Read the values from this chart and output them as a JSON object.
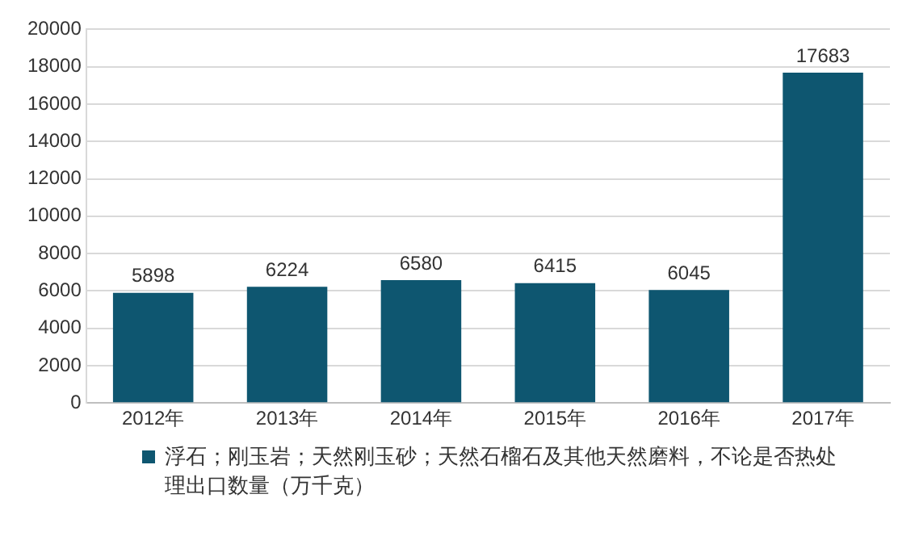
{
  "chart_data": {
    "type": "bar",
    "categories": [
      "2012年",
      "2013年",
      "2014年",
      "2015年",
      "2016年",
      "2017年"
    ],
    "series": [
      {
        "name": "浮石；刚玉岩；天然刚玉砂；天然石榴石及其他天然磨料，不论是否热处理出口数量（万千克）",
        "color": "#0e5670",
        "values": [
          5898,
          6224,
          6580,
          6415,
          6045,
          17683
        ]
      }
    ],
    "ylim": [
      0,
      20000
    ],
    "yticks": [
      0,
      2000,
      4000,
      6000,
      8000,
      10000,
      12000,
      14000,
      16000,
      18000,
      20000
    ],
    "grid": "y",
    "legend": "bottom",
    "data_labels": true
  }
}
